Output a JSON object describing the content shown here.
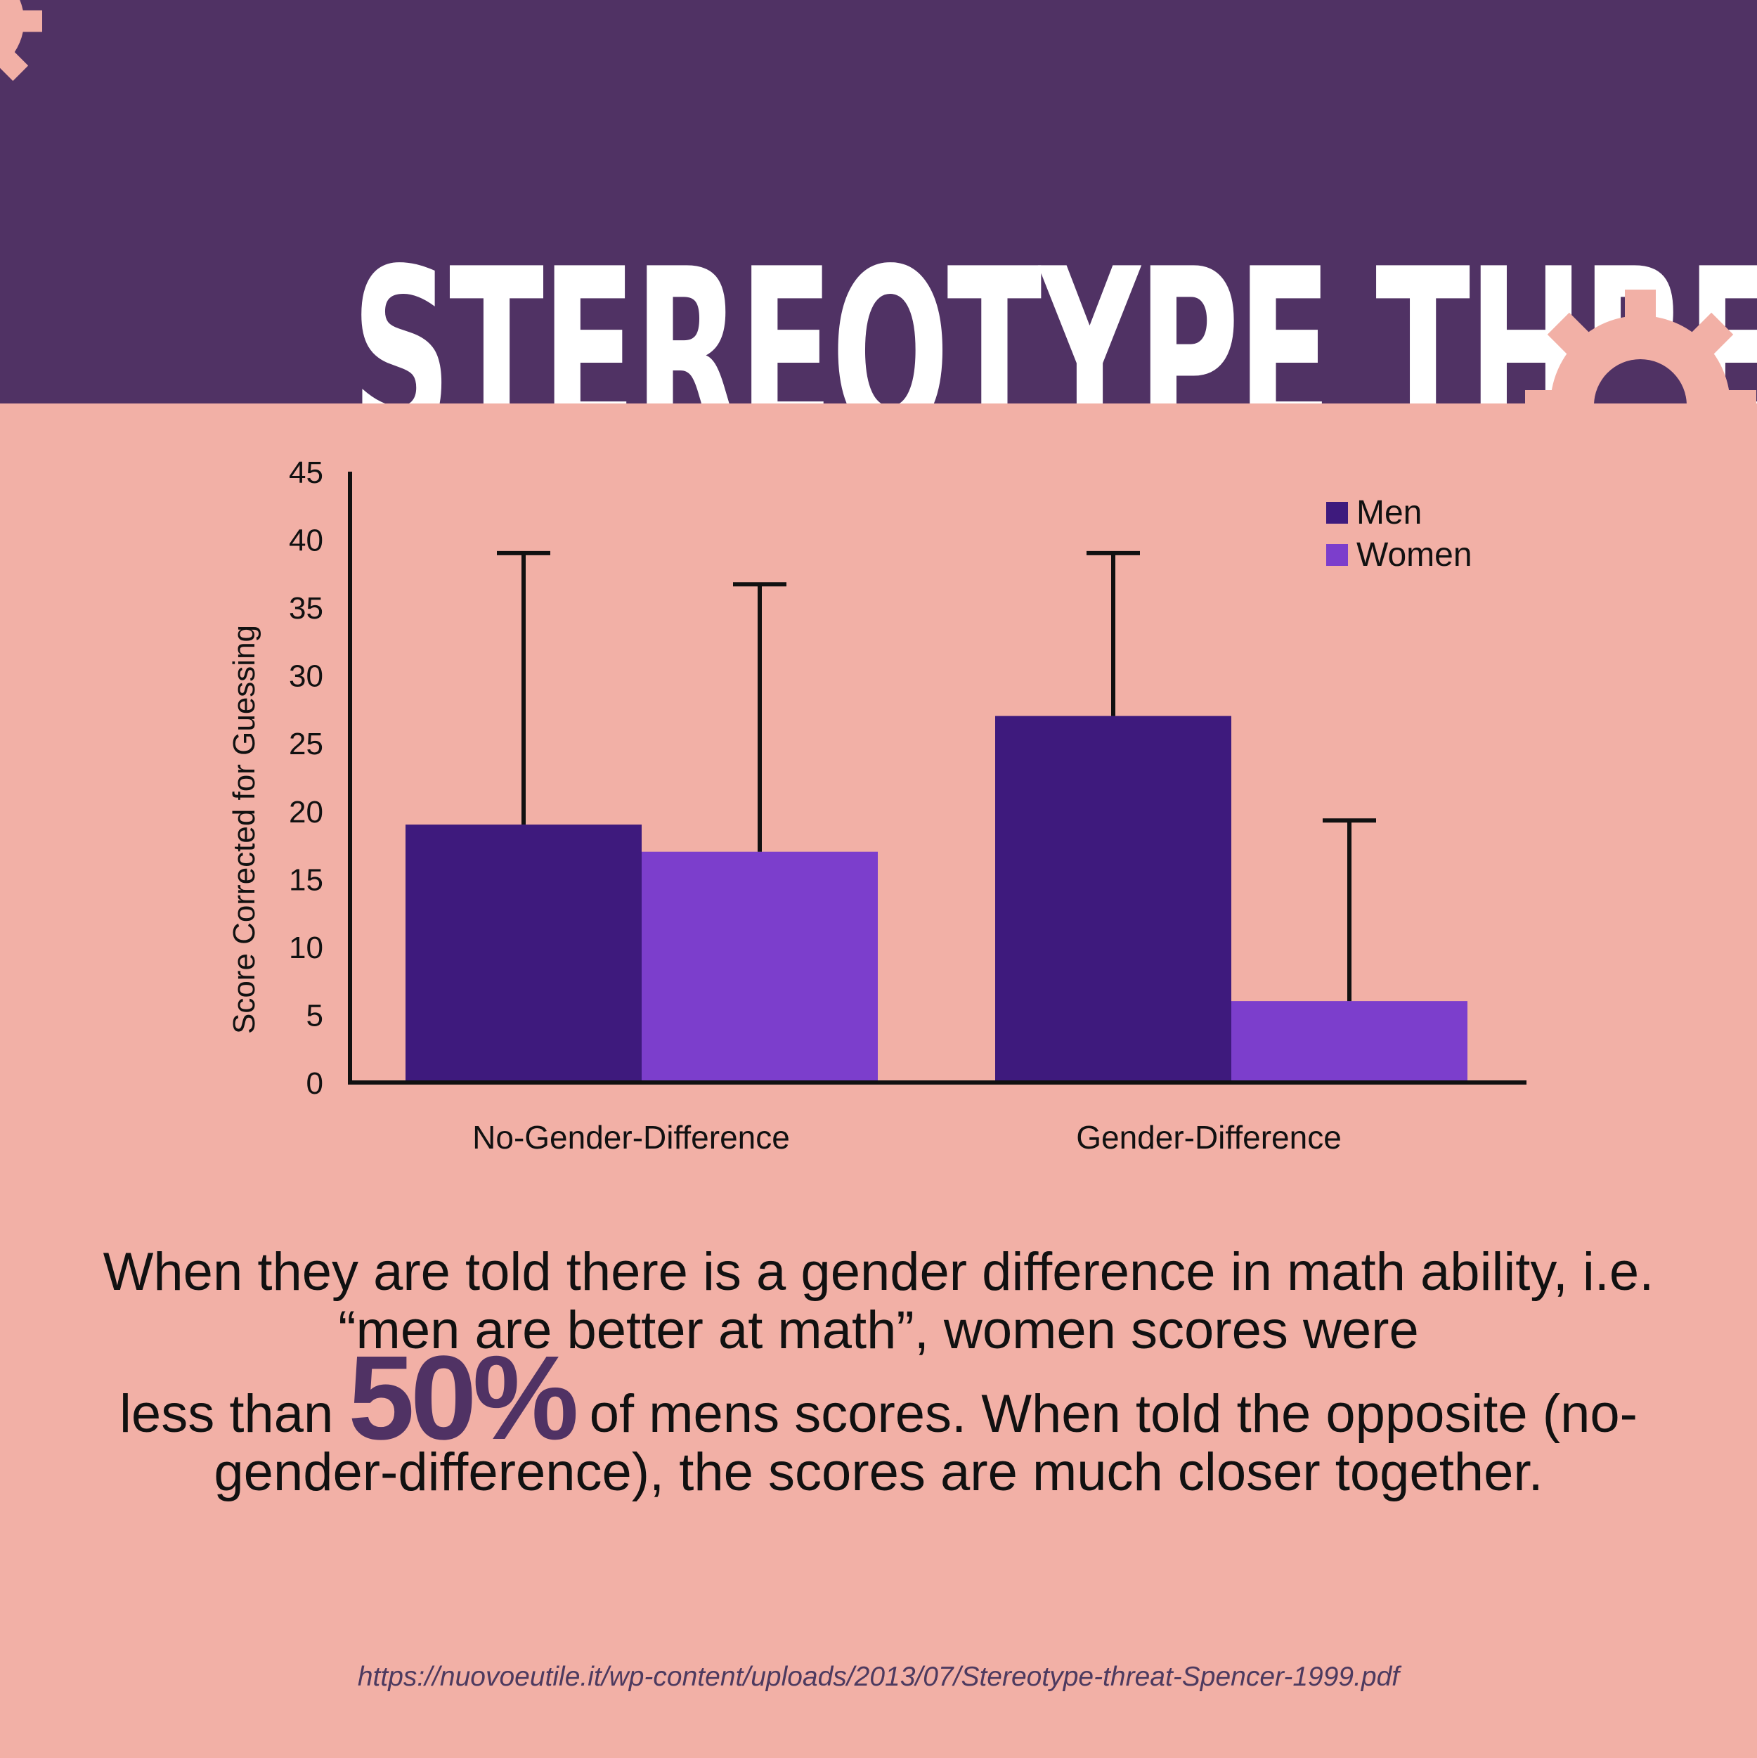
{
  "header": {
    "title": "STEREOTYPE THREAT"
  },
  "colors": {
    "header_bg": "#503264",
    "page_bg": "#f2b0a6",
    "men": "#3e1a7d",
    "women": "#7c3ecc",
    "gear": "#f2b0a6",
    "accent_text": "#503264"
  },
  "icons": [
    "gear-icon"
  ],
  "chart_data": {
    "type": "bar",
    "title": "",
    "xlabel": "",
    "ylabel": "Score Corrected for Guessing",
    "ylim": [
      0,
      45
    ],
    "yticks": [
      "0",
      "5",
      "10",
      "15",
      "20",
      "25",
      "30",
      "35",
      "40",
      "45"
    ],
    "categories": [
      "No-Gender-Difference",
      "Gender-Difference"
    ],
    "series": [
      {
        "name": "Men",
        "values": [
          19,
          27
        ],
        "error_upper": [
          39,
          39
        ]
      },
      {
        "name": "Women",
        "values": [
          17,
          6
        ],
        "error_upper": [
          36.7,
          19.3
        ]
      }
    ],
    "legend": "top-right",
    "grid": false
  },
  "body": {
    "line1": "When they are told there is a gender difference in math ability, i.e. “men are better at math”, women scores were",
    "pre": "less than",
    "big": "50%",
    "post": "of mens scores. When told the opposite (no-gender-difference), the scores are much closer together."
  },
  "source": "https://nuovoeutile.it/wp-content/uploads/2013/07/Stereotype-threat-Spencer-1999.pdf"
}
